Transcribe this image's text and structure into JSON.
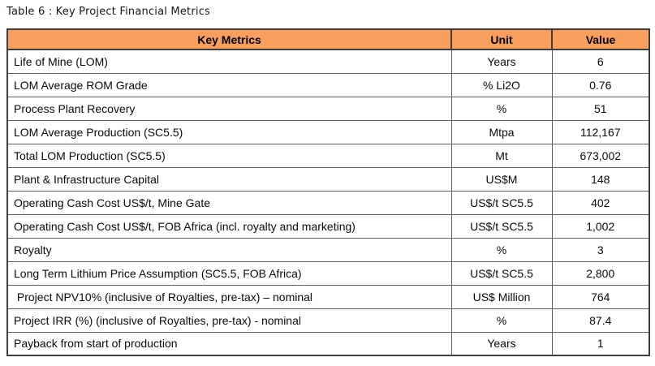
{
  "caption": "Table 6 : Key Project Financial Metrics",
  "table": {
    "headers": [
      "Key Metrics",
      "Unit",
      "Value"
    ],
    "header_bg_color": "#F99F5E",
    "rows": [
      {
        "metric": "Life of Mine (LOM)",
        "unit": "Years",
        "value": "6"
      },
      {
        "metric": "LOM Average ROM Grade",
        "unit": "% Li2O",
        "value": "0.76"
      },
      {
        "metric": "Process Plant Recovery",
        "unit": "%",
        "value": "51"
      },
      {
        "metric": "LOM Average Production (SC5.5)",
        "unit": "Mtpa",
        "value": "112,167"
      },
      {
        "metric": "Total LOM Production (SC5.5)",
        "unit": "Mt",
        "value": "673,002"
      },
      {
        "metric": "Plant & Infrastructure Capital",
        "unit": "US$M",
        "value": "148"
      },
      {
        "metric": "Operating Cash Cost US$/t, Mine Gate",
        "unit": "US$/t SC5.5",
        "value": "402"
      },
      {
        "metric": "Operating Cash Cost US$/t, FOB Africa (incl. royalty and marketing)",
        "unit": "US$/t SC5.5",
        "value": "1,002"
      },
      {
        "metric": "Royalty",
        "unit": "%",
        "value": "3"
      },
      {
        "metric": "Long Term Lithium Price Assumption (SC5.5, FOB Africa)",
        "unit": "US$/t SC5.5",
        "value": "2,800"
      },
      {
        "metric": " Project NPV10% (inclusive of Royalties, pre-tax) – nominal",
        "unit": "US$ Million",
        "value": "764"
      },
      {
        "metric": "Project IRR (%) (inclusive of Royalties, pre-tax) - nominal",
        "unit": "%",
        "value": "87.4"
      },
      {
        "metric": "Payback from start of production",
        "unit": "Years",
        "value": "1"
      }
    ]
  }
}
